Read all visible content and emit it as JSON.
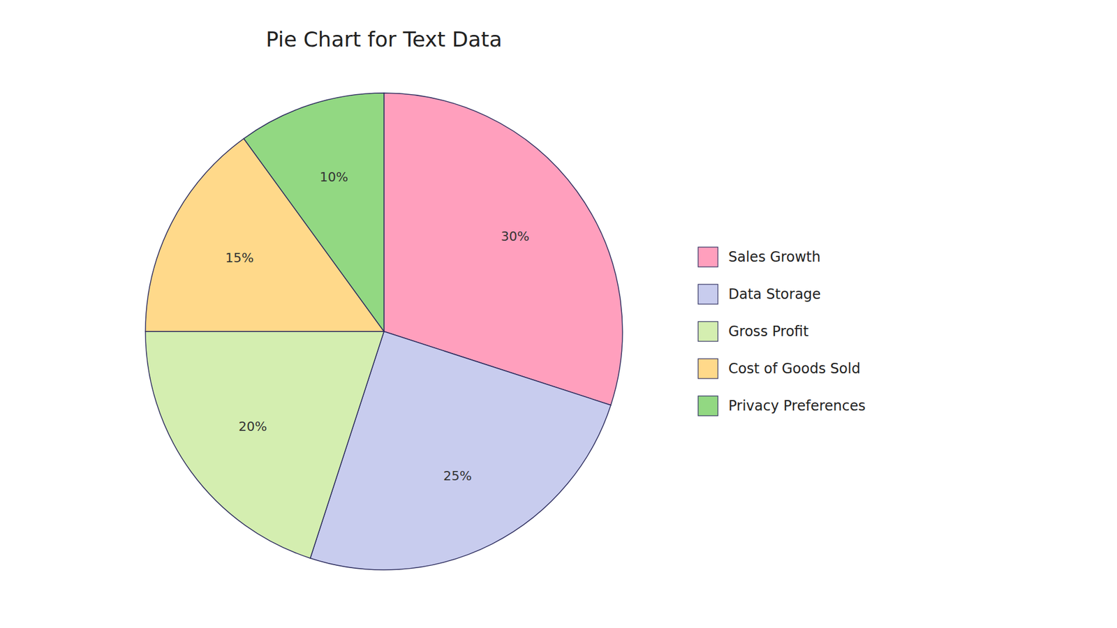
{
  "chart_data": {
    "type": "pie",
    "title": "Pie Chart for Text Data",
    "categories": [
      "Sales Growth",
      "Data Storage",
      "Gross Profit",
      "Cost of Goods Sold",
      "Privacy Preferences"
    ],
    "values": [
      30,
      25,
      20,
      15,
      10
    ],
    "value_labels": [
      "30%",
      "25%",
      "20%",
      "15%",
      "10%"
    ],
    "colors": [
      "#FF9FBD",
      "#C8CCEE",
      "#D4EEB0",
      "#FFD98A",
      "#92D882"
    ],
    "data_labels": true,
    "legend": "right"
  }
}
